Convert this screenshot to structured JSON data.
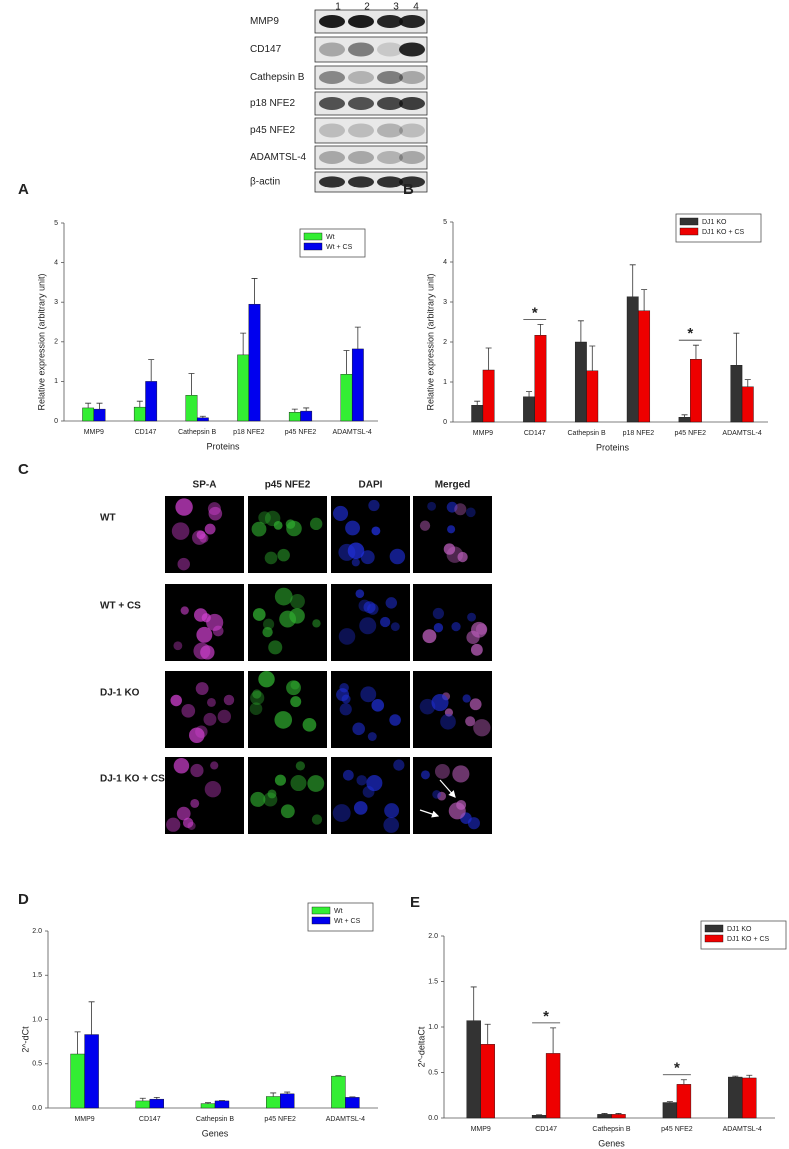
{
  "blot": {
    "lanes": [
      "1",
      "2",
      "3",
      "4"
    ],
    "rows": [
      "MMP9",
      "CD147",
      "Cathepsin B",
      "p18 NFE2",
      "p45 NFE2",
      "ADAMTSL-4",
      "β-actin"
    ]
  },
  "microscopy": {
    "panel_label": "C",
    "columns": [
      "SP-A",
      "p45 NFE2",
      "DAPI",
      "Merged"
    ],
    "rows": [
      "WT",
      "WT + CS",
      "DJ-1 KO",
      "DJ-1 KO + CS"
    ]
  },
  "chart_data": [
    {
      "type": "bar",
      "panel_label": "A",
      "x_label": "Proteins",
      "y_label": "Relative expression (arbitrary unit)",
      "categories": [
        "MMP9",
        "CD147",
        "Cathepsin B",
        "p18 NFE2",
        "p45 NFE2",
        "ADAMTSL-4"
      ],
      "series": [
        {
          "name": "Wt",
          "color": "#33ee33",
          "values": [
            0.33,
            0.35,
            0.65,
            1.67,
            0.22,
            1.18
          ],
          "errors": [
            0.12,
            0.15,
            0.55,
            0.55,
            0.08,
            0.6
          ]
        },
        {
          "name": "Wt + CS",
          "color": "#0000ee",
          "values": [
            0.3,
            1.0,
            0.08,
            2.95,
            0.25,
            1.82
          ],
          "errors": [
            0.15,
            0.55,
            0.04,
            0.65,
            0.08,
            0.55
          ]
        }
      ],
      "ylim": [
        0,
        5
      ],
      "yticks": [
        0,
        1,
        2,
        3,
        4,
        5
      ],
      "legend": "top-right"
    },
    {
      "type": "bar",
      "panel_label": "B",
      "x_label": "Proteins",
      "y_label": "Relative expression (arbitrary unit)",
      "categories": [
        "MMP9",
        "CD147",
        "Cathepsin B",
        "p18 NFE2",
        "p45 NFE2",
        "ADAMTSL-4"
      ],
      "series": [
        {
          "name": "DJ1 KO",
          "color": "#333333",
          "values": [
            0.42,
            0.63,
            2.0,
            3.13,
            0.12,
            1.42
          ],
          "errors": [
            0.1,
            0.13,
            0.53,
            0.8,
            0.06,
            0.8
          ]
        },
        {
          "name": "DJ1 KO + CS",
          "color": "#ee0000",
          "values": [
            1.3,
            2.17,
            1.28,
            2.78,
            1.57,
            0.88
          ],
          "errors": [
            0.55,
            0.27,
            0.62,
            0.53,
            0.35,
            0.18
          ]
        }
      ],
      "significance": [
        null,
        "*",
        null,
        null,
        "*",
        null
      ],
      "ylim": [
        0,
        5
      ],
      "yticks": [
        0,
        1,
        2,
        3,
        4,
        5
      ],
      "legend": "top-right"
    },
    {
      "type": "bar",
      "panel_label": "D",
      "x_label": "Genes",
      "y_label": "2^-dCt",
      "categories": [
        "MMP9",
        "CD147",
        "Cathepsin B",
        "p45 NFE2",
        "ADAMTSL-4"
      ],
      "series": [
        {
          "name": "Wt",
          "color": "#33ee33",
          "values": [
            0.61,
            0.08,
            0.05,
            0.13,
            0.36
          ],
          "errors": [
            0.25,
            0.03,
            0.01,
            0.04,
            0.005
          ]
        },
        {
          "name": "Wt + CS",
          "color": "#0000ee",
          "values": [
            0.83,
            0.1,
            0.08,
            0.16,
            0.12
          ],
          "errors": [
            0.37,
            0.02,
            0.005,
            0.02,
            0.005
          ]
        }
      ],
      "ylim": [
        0,
        2
      ],
      "yticks": [
        {
          "value": 0,
          "label": "0.0"
        },
        0.5,
        {
          "value": 1,
          "label": "1.0"
        },
        1.5,
        {
          "value": 2,
          "label": "2.0"
        }
      ],
      "legend": "top-right"
    },
    {
      "type": "bar",
      "panel_label": "E",
      "x_label": "Genes",
      "y_label": "2^-deltaCt",
      "categories": [
        "MMP9",
        "CD147",
        "Cathepsin B",
        "p45 NFE2",
        "ADAMTSL-4"
      ],
      "series": [
        {
          "name": "DJ1 KO",
          "color": "#333333",
          "values": [
            1.07,
            0.03,
            0.04,
            0.17,
            0.45
          ],
          "errors": [
            0.37,
            0.005,
            0.01,
            0.01,
            0.01
          ]
        },
        {
          "name": "DJ1 KO + CS",
          "color": "#ee0000",
          "values": [
            0.81,
            0.71,
            0.04,
            0.37,
            0.44
          ],
          "errors": [
            0.22,
            0.28,
            0.01,
            0.05,
            0.03
          ]
        }
      ],
      "significance": [
        null,
        "*",
        null,
        "*",
        null
      ],
      "ylim": [
        0,
        2
      ],
      "yticks": [
        {
          "value": 0,
          "label": "0.0"
        },
        0.5,
        {
          "value": 1,
          "label": "1.0"
        },
        1.5,
        {
          "value": 2,
          "label": "2.0"
        }
      ],
      "legend": "top-right"
    }
  ]
}
